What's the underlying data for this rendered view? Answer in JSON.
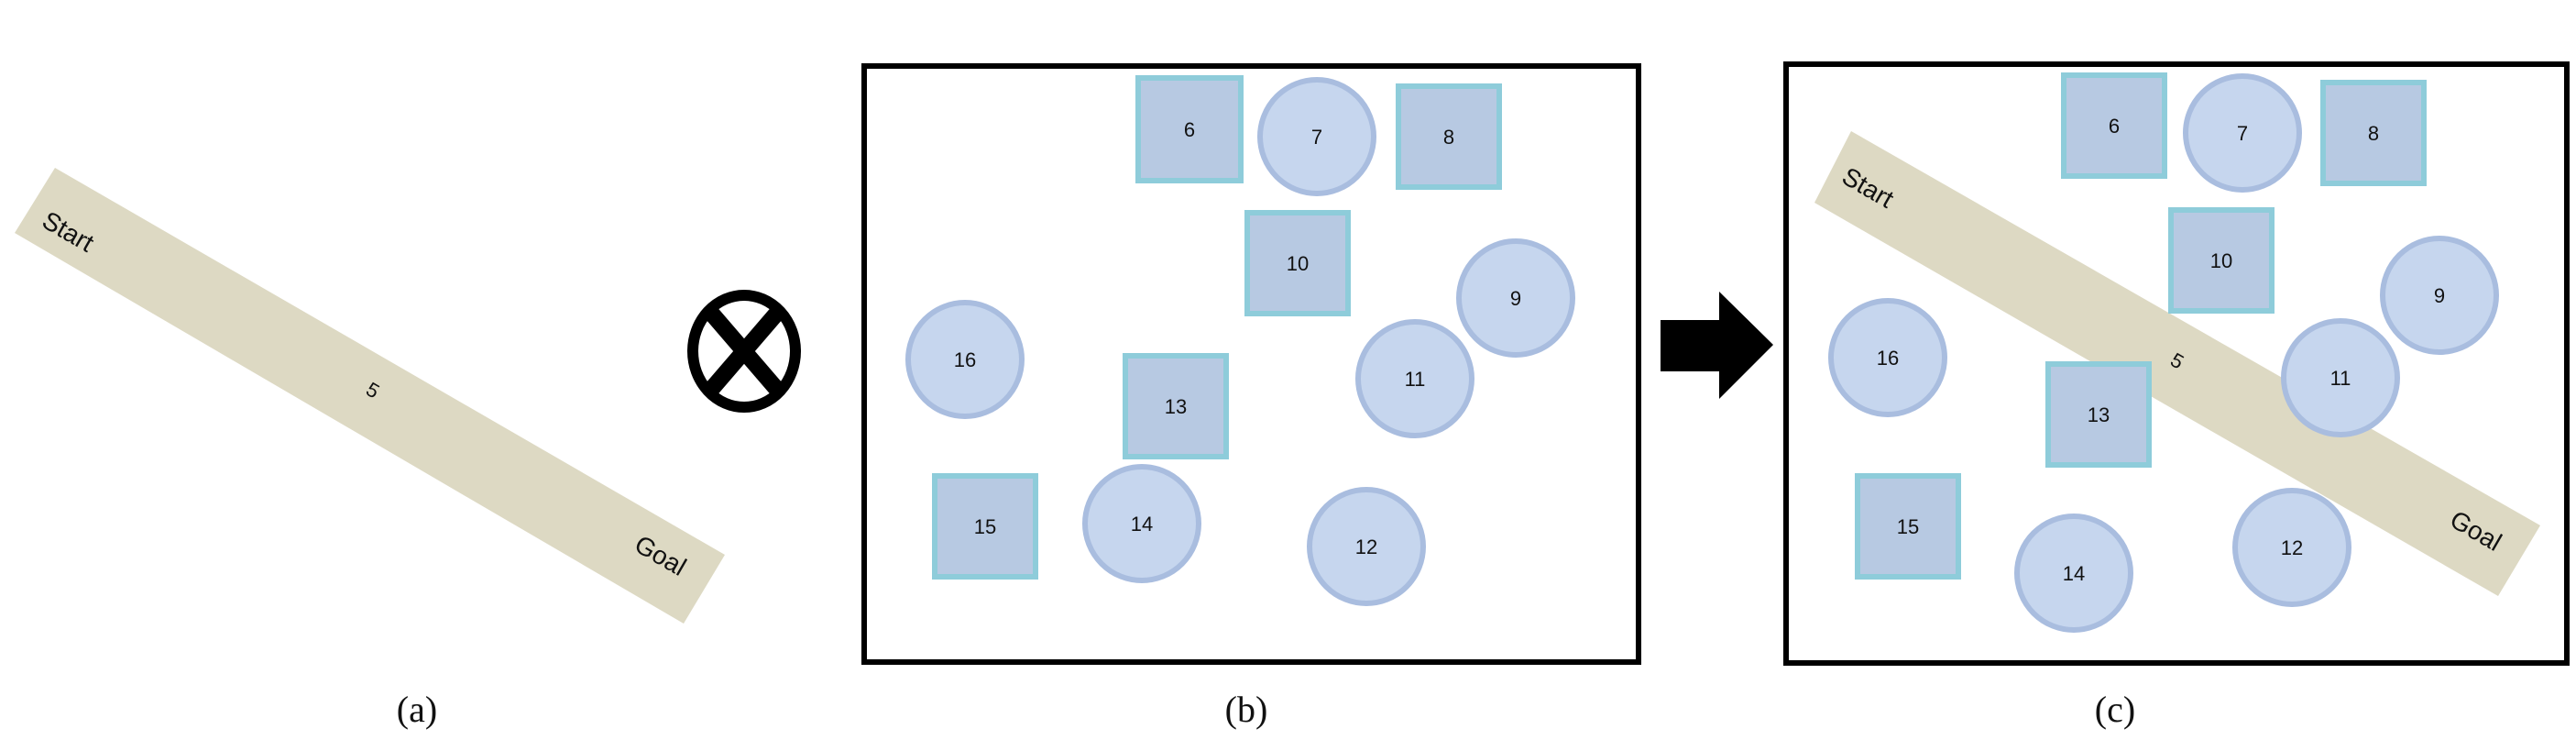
{
  "colors": {
    "path_fill": "#DDD9C3",
    "circle_fill": "#C6D6EE",
    "circle_stroke": "#A9BDDF",
    "square_fill": "#B7C9E2",
    "square_stroke": "#8ECCDA",
    "frame_stroke": "#000000",
    "arrow": "#000000"
  },
  "operator_icon": "circled-times-icon",
  "arrow_icon": "right-arrow-icon",
  "panel_a": {
    "caption": "(a)",
    "path_label": "5",
    "start_label": "Start",
    "goal_label": "Goal"
  },
  "panel_b": {
    "caption": "(b)",
    "obstacles": [
      {
        "label": "6",
        "shape": "square"
      },
      {
        "label": "7",
        "shape": "circle"
      },
      {
        "label": "8",
        "shape": "square"
      },
      {
        "label": "10",
        "shape": "square"
      },
      {
        "label": "9",
        "shape": "circle"
      },
      {
        "label": "16",
        "shape": "circle"
      },
      {
        "label": "11",
        "shape": "circle"
      },
      {
        "label": "13",
        "shape": "square"
      },
      {
        "label": "15",
        "shape": "square"
      },
      {
        "label": "14",
        "shape": "circle"
      },
      {
        "label": "12",
        "shape": "circle"
      }
    ]
  },
  "panel_c": {
    "caption": "(c)",
    "path_label": "5",
    "start_label": "Start",
    "goal_label": "Goal",
    "obstacles": [
      {
        "label": "6",
        "shape": "square"
      },
      {
        "label": "7",
        "shape": "circle"
      },
      {
        "label": "8",
        "shape": "square"
      },
      {
        "label": "10",
        "shape": "square"
      },
      {
        "label": "9",
        "shape": "circle"
      },
      {
        "label": "16",
        "shape": "circle"
      },
      {
        "label": "11",
        "shape": "circle"
      },
      {
        "label": "13",
        "shape": "square"
      },
      {
        "label": "15",
        "shape": "square"
      },
      {
        "label": "14",
        "shape": "circle"
      },
      {
        "label": "12",
        "shape": "circle"
      }
    ]
  }
}
